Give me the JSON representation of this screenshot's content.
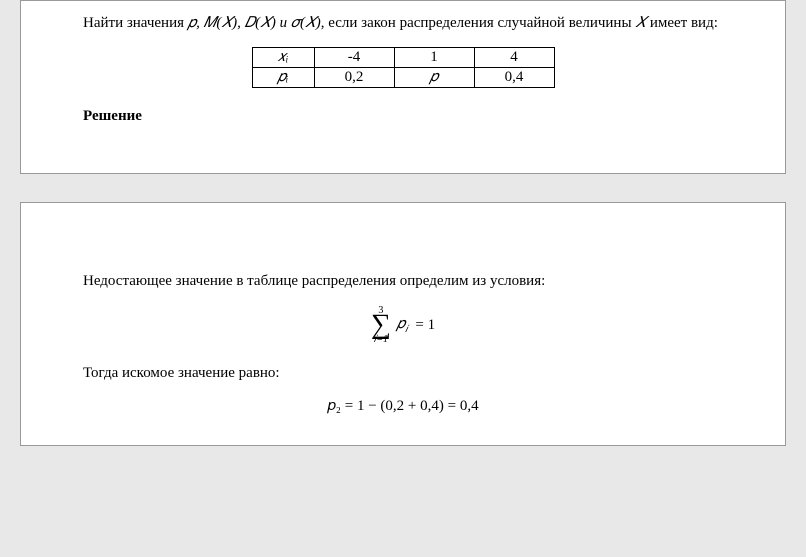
{
  "problem": {
    "text_before": "Найти значения ",
    "vars": "𝑝, 𝑀(𝑋), 𝐷(𝑋) и 𝜎(𝑋)",
    "text_mid": ", если закон распределения случайной величины ",
    "var_x": "𝑋",
    "text_after": " имеет вид:"
  },
  "table": {
    "row1_header": "𝑥ᵢ",
    "row1": [
      "-4",
      "1",
      "4"
    ],
    "row2_header": "𝑝ᵢ",
    "row2": [
      "0,2",
      "𝑝",
      "0,4"
    ]
  },
  "solution_label": "Решение",
  "page2": {
    "line1": "Недостающее значение в таблице распределения определим из условия:",
    "sum_top": "3",
    "sum_bottom": "𝑖=1",
    "sum_body_p": "𝑝",
    "sum_body_sub": "𝑖",
    "sum_eq": " = 1",
    "line2": "Тогда искомое значение равно:",
    "p2_formula": "𝑝₂ = 1 − (0,2 + 0,4) = 0,4"
  },
  "styling": {
    "page_bg": "#ffffff",
    "body_bg": "#e8e8e8",
    "border_color": "#000000",
    "font_family": "Times New Roman",
    "base_fontsize": 15
  }
}
